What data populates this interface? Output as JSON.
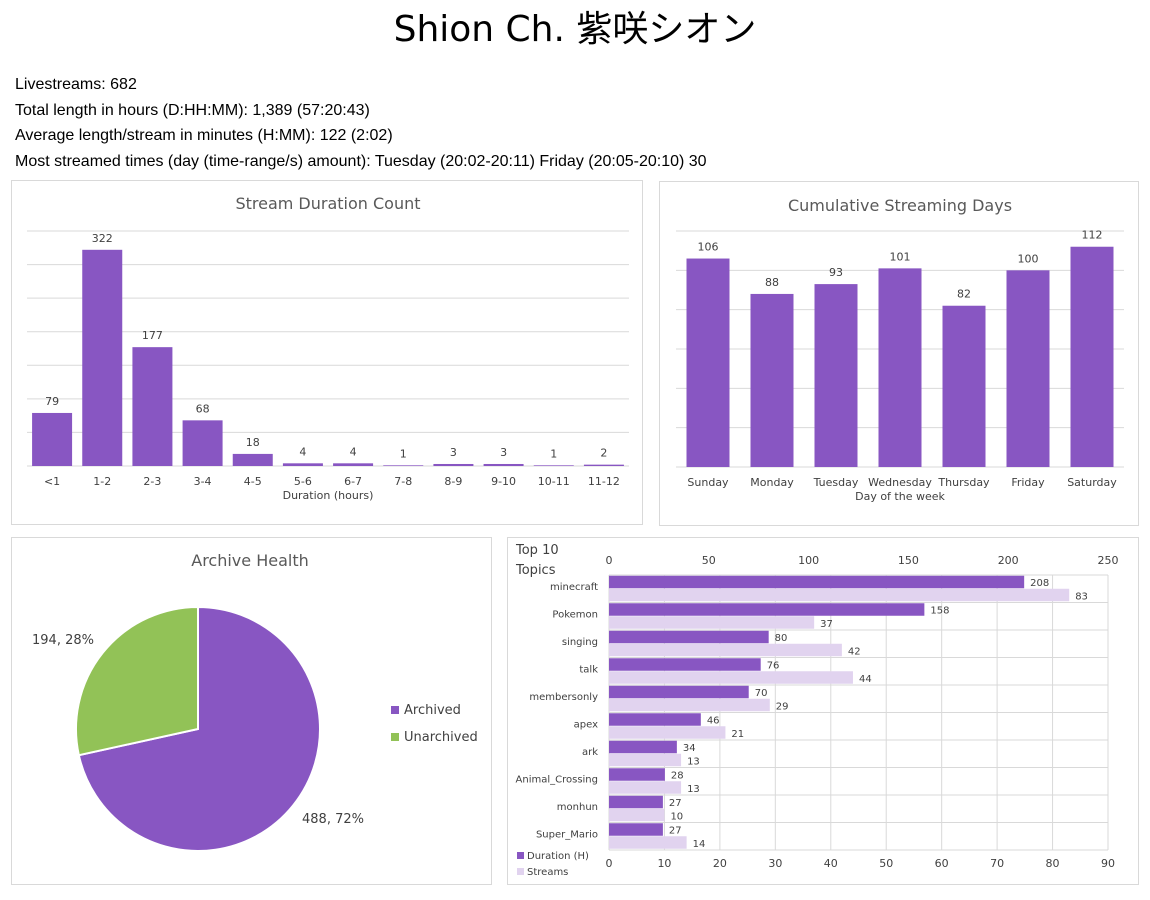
{
  "page": {
    "title": "Shion Ch. 紫咲シオン",
    "stats": [
      "Livestreams: 682",
      "Total length in hours (D:HH:MM): 1,389 (57:20:43)",
      "Average length/stream in minutes (H:MM): 122 (2:02)",
      "Most streamed times (day (time-range/s) amount): Tuesday (20:02-20:11) Friday (20:05-20:10) 30"
    ]
  },
  "colors": {
    "primary": "#8856c2",
    "light": "#e1d3ef",
    "green": "#92c257",
    "grid": "#d9d9d9"
  },
  "chart_data": [
    {
      "type": "bar",
      "title": "Stream Duration Count",
      "xlabel": "Duration (hours)",
      "ylabel": "",
      "categories": [
        "<1",
        "1-2",
        "2-3",
        "3-4",
        "4-5",
        "5-6",
        "6-7",
        "7-8",
        "8-9",
        "9-10",
        "10-11",
        "11-12"
      ],
      "values": [
        79,
        322,
        177,
        68,
        18,
        4,
        4,
        1,
        3,
        3,
        1,
        2
      ],
      "ylim": [
        0,
        350
      ],
      "grid": true,
      "data_labels": true
    },
    {
      "type": "bar",
      "title": "Cumulative Streaming Days",
      "xlabel": "Day of the week",
      "ylabel": "",
      "categories": [
        "Sunday",
        "Monday",
        "Tuesday",
        "Wednesday",
        "Thursday",
        "Friday",
        "Saturday"
      ],
      "values": [
        106,
        88,
        93,
        101,
        82,
        100,
        112
      ],
      "ylim": [
        0,
        120
      ],
      "grid": true,
      "data_labels": true
    },
    {
      "type": "pie",
      "title": "Archive Health",
      "slices": [
        {
          "label": "Archived",
          "value": 488,
          "data_label": "488, 72%",
          "color": "#8856c2"
        },
        {
          "label": "Unarchived",
          "value": 194,
          "data_label": "194, 28%",
          "color": "#92c257"
        }
      ],
      "legend": "right"
    },
    {
      "type": "bar",
      "orientation": "horizontal",
      "title": "Top 10 Topics",
      "categories": [
        "minecraft",
        "Pokemon",
        "singing",
        "talk",
        "membersonly",
        "apex",
        "ark",
        "Animal_Crossing",
        "monhun",
        "Super_Mario"
      ],
      "series": [
        {
          "name": "Duration (H)",
          "values": [
            208,
            158,
            80,
            76,
            70,
            46,
            34,
            28,
            27,
            27
          ],
          "axis": "top",
          "color": "#8856c2"
        },
        {
          "name": "Streams",
          "values": [
            83,
            37,
            42,
            44,
            29,
            21,
            13,
            13,
            10,
            14
          ],
          "axis": "bottom",
          "color": "#e1d3ef"
        }
      ],
      "top_axis": {
        "range": [
          0,
          250
        ],
        "ticks": [
          0,
          50,
          100,
          150,
          200,
          250
        ]
      },
      "bottom_axis": {
        "range": [
          0,
          90
        ],
        "ticks": [
          0,
          10,
          20,
          30,
          40,
          50,
          60,
          70,
          80,
          90
        ]
      },
      "grid": true,
      "legend": "bottom-left"
    }
  ]
}
